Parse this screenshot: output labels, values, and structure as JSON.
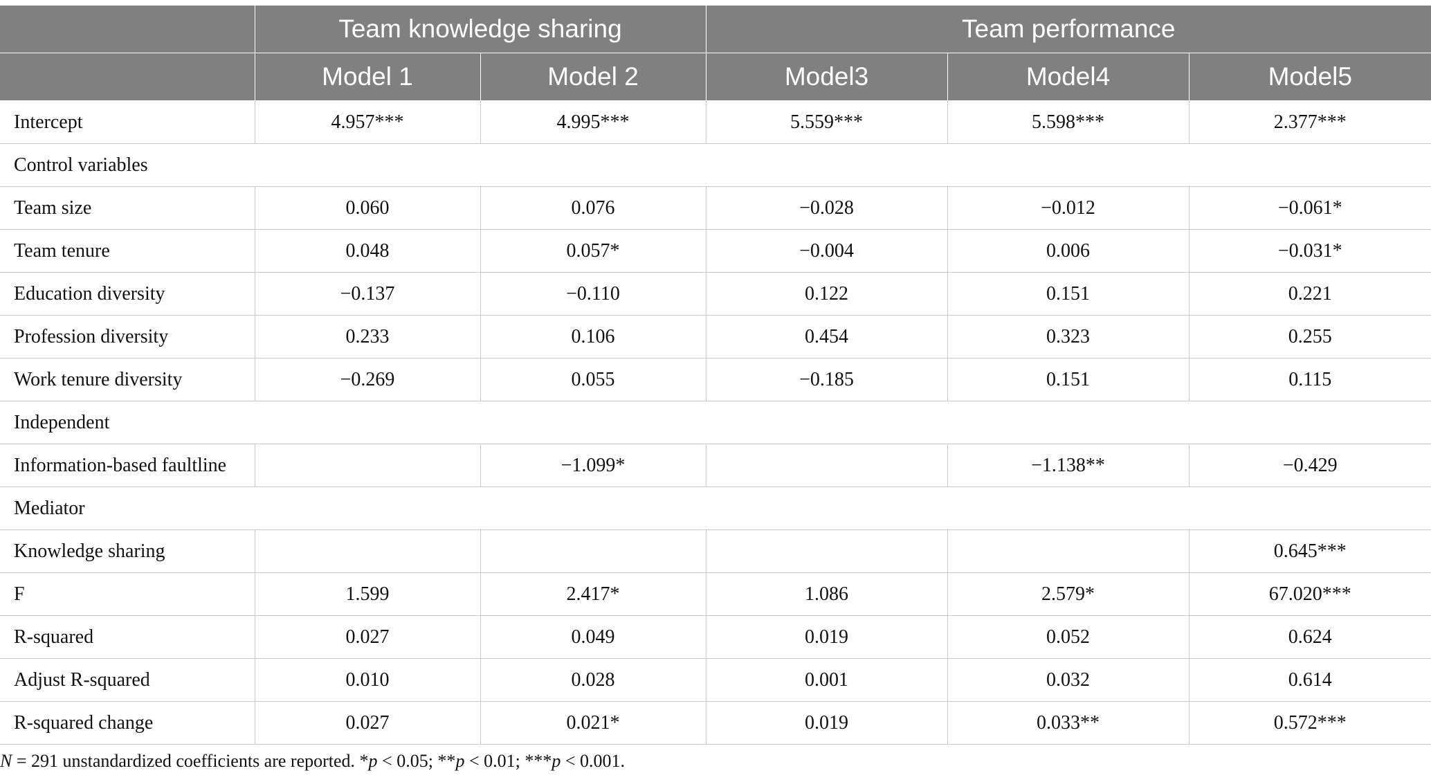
{
  "header": {
    "groups": [
      "Team knowledge sharing",
      "Team performance"
    ],
    "models": [
      "Model 1",
      "Model 2",
      "Model3",
      "Model4",
      "Model5"
    ]
  },
  "rows": [
    {
      "type": "data",
      "label": "Intercept",
      "values": [
        "4.957***",
        "4.995***",
        "5.559***",
        "5.598***",
        "2.377***"
      ]
    },
    {
      "type": "section",
      "label": "Control variables"
    },
    {
      "type": "data",
      "label": "Team size",
      "values": [
        "0.060",
        "0.076",
        "−0.028",
        "−0.012",
        "−0.061*"
      ]
    },
    {
      "type": "data",
      "label": "Team tenure",
      "values": [
        "0.048",
        "0.057*",
        "−0.004",
        "0.006",
        "−0.031*"
      ]
    },
    {
      "type": "data",
      "label": "Education diversity",
      "values": [
        "−0.137",
        "−0.110",
        "0.122",
        "0.151",
        "0.221"
      ]
    },
    {
      "type": "data",
      "label": "Profession diversity",
      "values": [
        "0.233",
        "0.106",
        "0.454",
        "0.323",
        "0.255"
      ]
    },
    {
      "type": "data",
      "label": "Work tenure diversity",
      "values": [
        "−0.269",
        "0.055",
        "−0.185",
        "0.151",
        "0.115"
      ]
    },
    {
      "type": "section",
      "label": "Independent"
    },
    {
      "type": "data",
      "label": "Information-based faultline",
      "values": [
        "",
        "−1.099*",
        "",
        "−1.138**",
        "−0.429"
      ]
    },
    {
      "type": "section",
      "label": "Mediator"
    },
    {
      "type": "data",
      "label": "Knowledge sharing",
      "values": [
        "",
        "",
        "",
        "",
        "0.645***"
      ]
    },
    {
      "type": "data",
      "label": "F",
      "values": [
        "1.599",
        "2.417*",
        "1.086",
        "2.579*",
        "67.020***"
      ]
    },
    {
      "type": "data",
      "label": "R-squared",
      "values": [
        "0.027",
        "0.049",
        "0.019",
        "0.052",
        "0.624"
      ]
    },
    {
      "type": "data",
      "label": "Adjust R-squared",
      "values": [
        "0.010",
        "0.028",
        "0.001",
        "0.032",
        "0.614"
      ]
    },
    {
      "type": "data",
      "label": "R-squared change",
      "values": [
        "0.027",
        "0.021*",
        "0.019",
        "0.033**",
        "0.572***"
      ]
    }
  ],
  "footnote": {
    "n_symbol": "N",
    "n_rest": " = 291 unstandardized coefficients are reported. *",
    "p1": "p",
    "t1": " < 0.05; **",
    "p2": "p",
    "t2": " < 0.01; ***",
    "p3": "p",
    "t3": " < 0.001."
  }
}
